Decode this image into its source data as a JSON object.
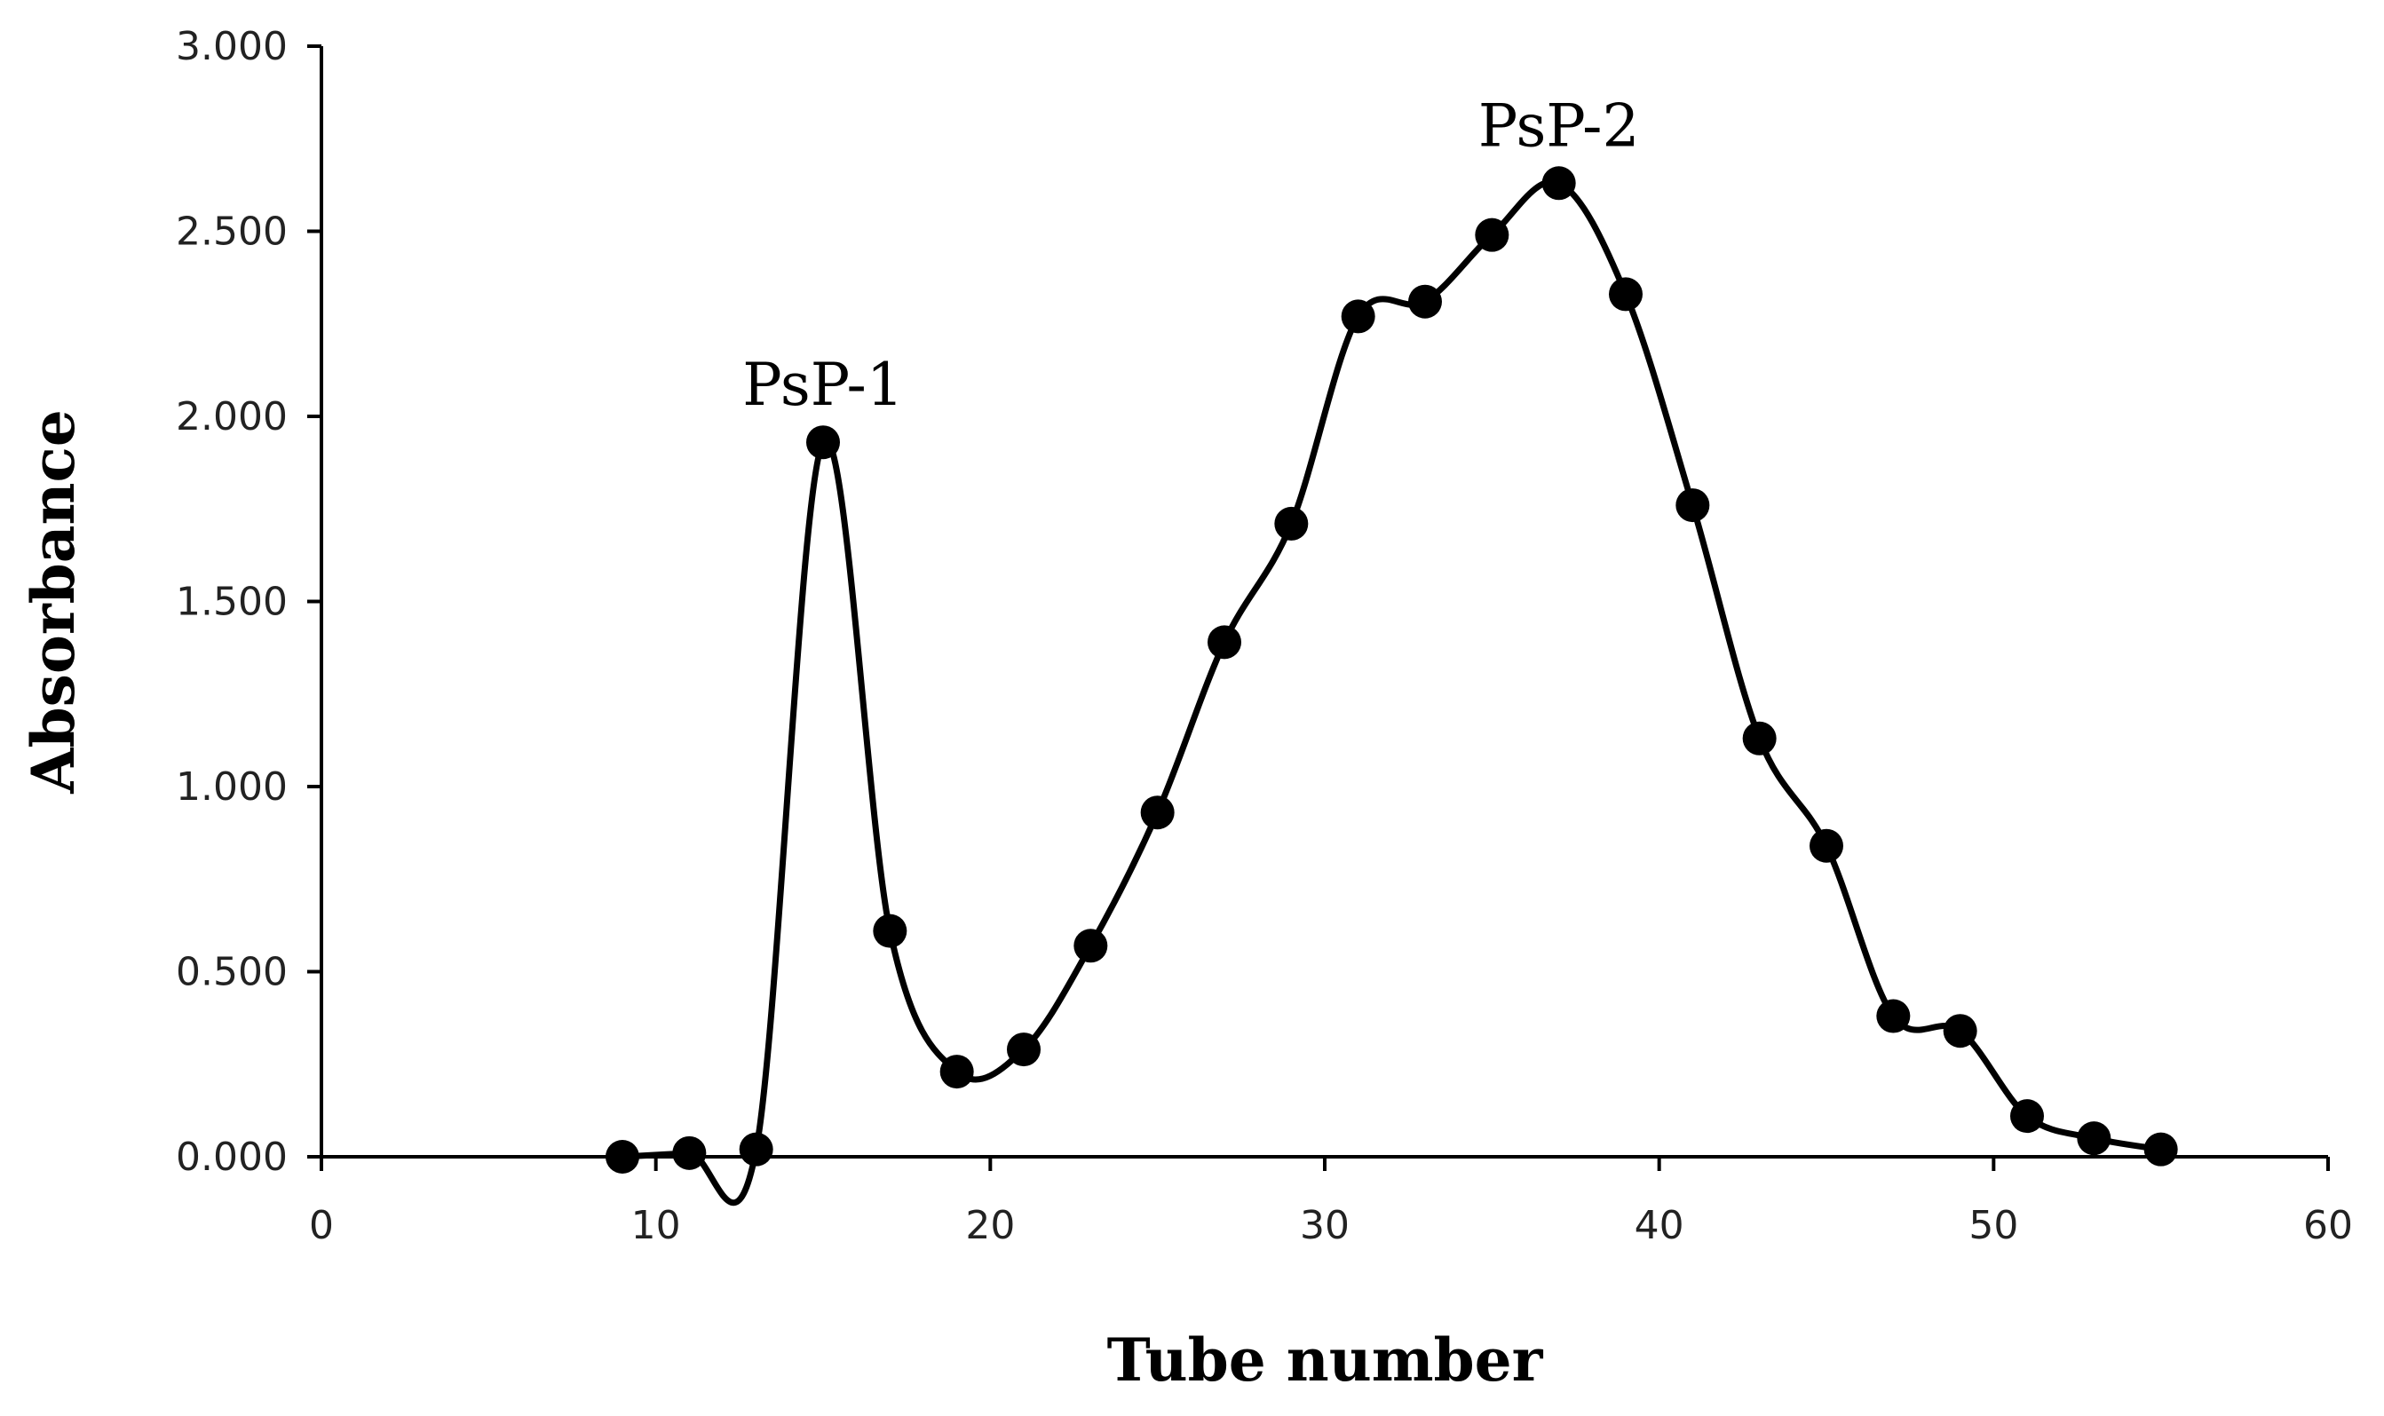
{
  "chart_data": {
    "type": "scatter",
    "title": "",
    "xlabel": "Tube number",
    "ylabel": "Absorbance",
    "xlim": [
      0,
      60
    ],
    "ylim": [
      0,
      3
    ],
    "xticks": [
      0,
      10,
      20,
      30,
      40,
      50,
      60
    ],
    "yticks": [
      0,
      0.5,
      1,
      1.5,
      2,
      2.5,
      3
    ],
    "xtick_labels": [
      "0",
      "10",
      "20",
      "30",
      "40",
      "50",
      "60"
    ],
    "ytick_labels": [
      "0.000",
      "0.500",
      "1.000",
      "1.500",
      "2.000",
      "2.500",
      "3.000"
    ],
    "grid": false,
    "legend": false,
    "smooth_line": true,
    "series": [
      {
        "x": [
          9,
          11,
          13,
          15,
          17,
          19,
          21,
          23,
          25,
          27,
          29,
          31,
          33,
          35,
          37,
          39,
          41,
          43,
          45,
          47,
          49,
          51,
          53,
          55
        ],
        "y": [
          0.0,
          0.01,
          0.02,
          1.93,
          0.61,
          0.23,
          0.29,
          0.57,
          0.93,
          1.39,
          1.71,
          2.27,
          2.31,
          2.49,
          2.63,
          2.33,
          1.76,
          1.13,
          0.84,
          0.38,
          0.34,
          0.11,
          0.05,
          0.02
        ],
        "color": "#000000"
      }
    ],
    "annotations": [
      {
        "text": "PsP-1",
        "x": 15,
        "y": 1.93
      },
      {
        "text": "PsP-2",
        "x": 37,
        "y": 2.63
      }
    ]
  }
}
